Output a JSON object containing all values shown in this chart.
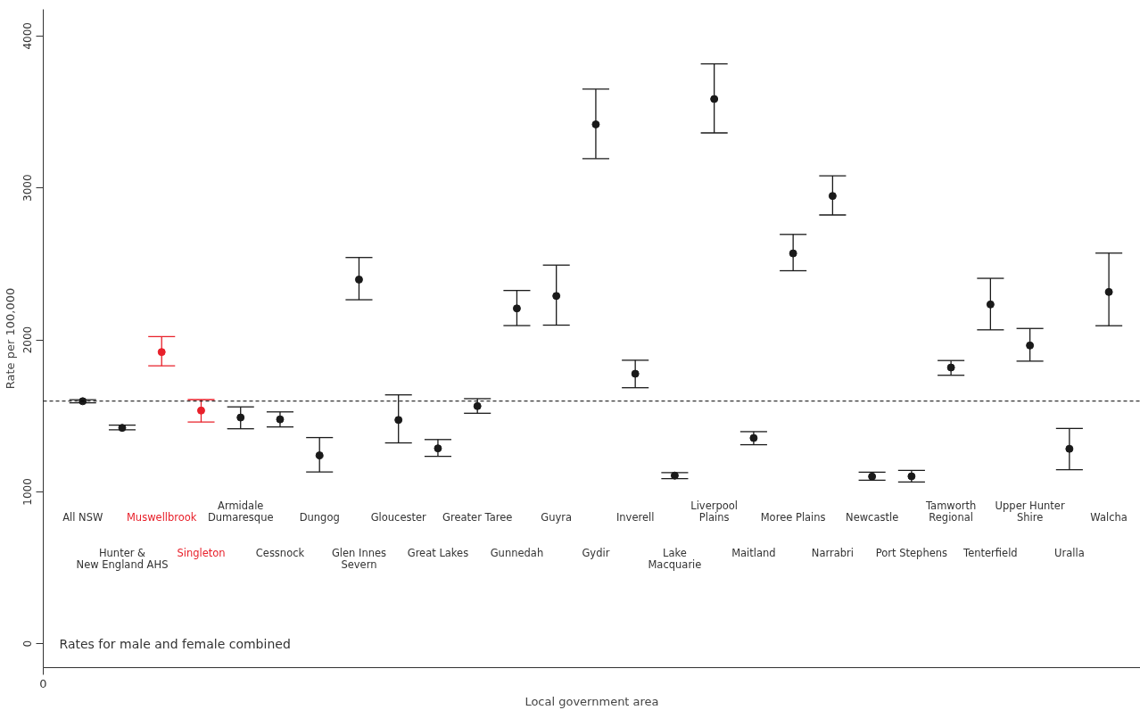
{
  "chart_data": {
    "type": "scatter",
    "xlabel": "Local government area",
    "ylabel": "Rate per 100,000",
    "categories": [
      "All NSW",
      "Hunter &\nNew England AHS",
      "Muswellbrook",
      "Singleton",
      "Armidale\nDumaresque",
      "Cessnock",
      "Dungog",
      "Glen Innes\nSevern",
      "Gloucester",
      "Great Lakes",
      "Greater Taree",
      "Gunnedah",
      "Guyra",
      "Gydir",
      "Inverell",
      "Lake\nMacquarie",
      "Liverpool\nPlains",
      "Maitland",
      "Moree Plains",
      "Narrabri",
      "Newcastle",
      "Port Stephens",
      "Tamworth\nRegional",
      "Tenterfield",
      "Upper Hunter\nShire",
      "Uralla",
      "Walcha"
    ],
    "values": [
      1596,
      1421,
      1920,
      1535,
      1489,
      1477,
      1240,
      2397,
      1473,
      1286,
      1564,
      2207,
      2289,
      3418,
      1777,
      1107,
      3585,
      1354,
      2569,
      2947,
      1101,
      1102,
      1818,
      2233,
      1963,
      1283,
      2315
    ],
    "errors": [
      [
        1586,
        1606
      ],
      [
        1408,
        1439
      ],
      [
        1829,
        2021
      ],
      [
        1459,
        1607
      ],
      [
        1415,
        1559
      ],
      [
        1427,
        1526
      ],
      [
        1131,
        1357
      ],
      [
        2264,
        2542
      ],
      [
        1322,
        1638
      ],
      [
        1234,
        1344
      ],
      [
        1517,
        1613
      ],
      [
        2094,
        2325
      ],
      [
        2097,
        2492
      ],
      [
        3193,
        3650
      ],
      [
        1685,
        1866
      ],
      [
        1087,
        1126
      ],
      [
        3362,
        3816
      ],
      [
        1310,
        1396
      ],
      [
        2455,
        2694
      ],
      [
        2822,
        3080
      ],
      [
        1077,
        1129
      ],
      [
        1065,
        1141
      ],
      [
        1767,
        1864
      ],
      [
        2066,
        2405
      ],
      [
        1860,
        2075
      ],
      [
        1145,
        1417
      ],
      [
        2093,
        2571
      ]
    ],
    "colors": [
      "#1a1a1a",
      "#1a1a1a",
      "#e8202a",
      "#e8202a",
      "#1a1a1a",
      "#1a1a1a",
      "#1a1a1a",
      "#1a1a1a",
      "#1a1a1a",
      "#1a1a1a",
      "#1a1a1a",
      "#1a1a1a",
      "#1a1a1a",
      "#1a1a1a",
      "#1a1a1a",
      "#1a1a1a",
      "#1a1a1a",
      "#1a1a1a",
      "#1a1a1a",
      "#1a1a1a",
      "#1a1a1a",
      "#1a1a1a",
      "#1a1a1a",
      "#1a1a1a",
      "#1a1a1a",
      "#1a1a1a",
      "#1a1a1a"
    ],
    "marker": "circle",
    "ylim": [
      -157,
      4175
    ],
    "yticks": [
      0,
      1000,
      2000,
      3000,
      4000
    ],
    "ref_lines": [
      {
        "axis": "y",
        "value": 1597,
        "line_style": "dashed",
        "color": "#000000"
      }
    ],
    "annotations": [
      "Rates for male and female combined",
      "0"
    ]
  }
}
